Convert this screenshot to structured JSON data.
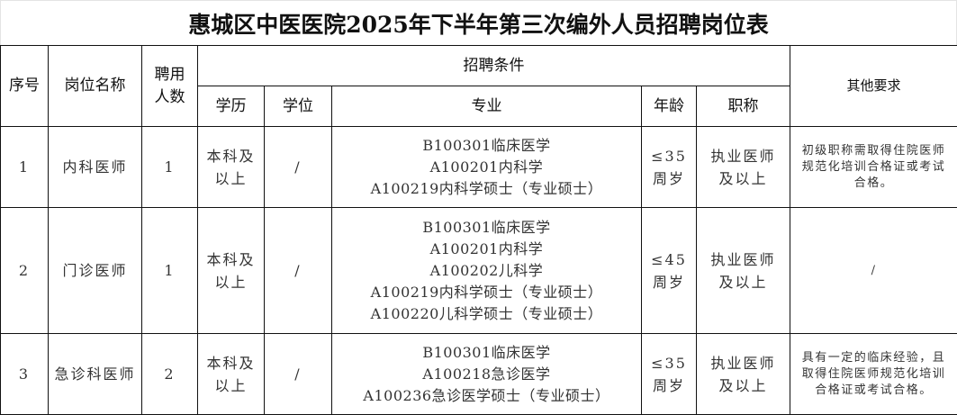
{
  "title": "惠城区中医医院2025年下半年第三次编外人员招聘岗位表",
  "headers": {
    "index": "序号",
    "position": "岗位名称",
    "count": [
      "聘用",
      "人数"
    ],
    "conditions": "招聘条件",
    "education": "学历",
    "degree": "学位",
    "major": "专业",
    "age": "年龄",
    "title": "职称",
    "other": "其他要求"
  },
  "rows": [
    {
      "index": "1",
      "position": "内科医师",
      "count": "1",
      "education": [
        "本科及",
        "以上"
      ],
      "degree": "/",
      "majors": [
        "B100301临床医学",
        "A100201内科学",
        "A100219内科学硕士（专业硕士）"
      ],
      "age": [
        "≤35",
        "周岁"
      ],
      "title": [
        "执业医师",
        "及以上"
      ],
      "other": [
        "初级职称需取得住院医师",
        "规范化培训合格证或考试",
        "合格。"
      ]
    },
    {
      "index": "2",
      "position": "门诊医师",
      "count": "1",
      "education": [
        "本科及",
        "以上"
      ],
      "degree": "/",
      "majors": [
        "B100301临床医学",
        "A100201内科学",
        "A100202儿科学",
        "A100219内科学硕士（专业硕士）",
        "A100220儿科学硕士（专业硕士）"
      ],
      "age": [
        "≤45",
        "周岁"
      ],
      "title": [
        "执业医师",
        "及以上"
      ],
      "other": [
        "/"
      ]
    },
    {
      "index": "3",
      "position": "急诊科医师",
      "count": "2",
      "education": [
        "本科及",
        "以上"
      ],
      "degree": "/",
      "majors": [
        "B100301临床医学",
        "A100218急诊医学",
        "A100236急诊医学硕士（专业硕士）"
      ],
      "age": [
        "≤35",
        "周岁"
      ],
      "title": [
        "执业医师",
        "及以上"
      ],
      "other": [
        "具有一定的临床经验，且",
        "取得住院医师规范化培训",
        "合格证或考试合格。"
      ]
    }
  ]
}
